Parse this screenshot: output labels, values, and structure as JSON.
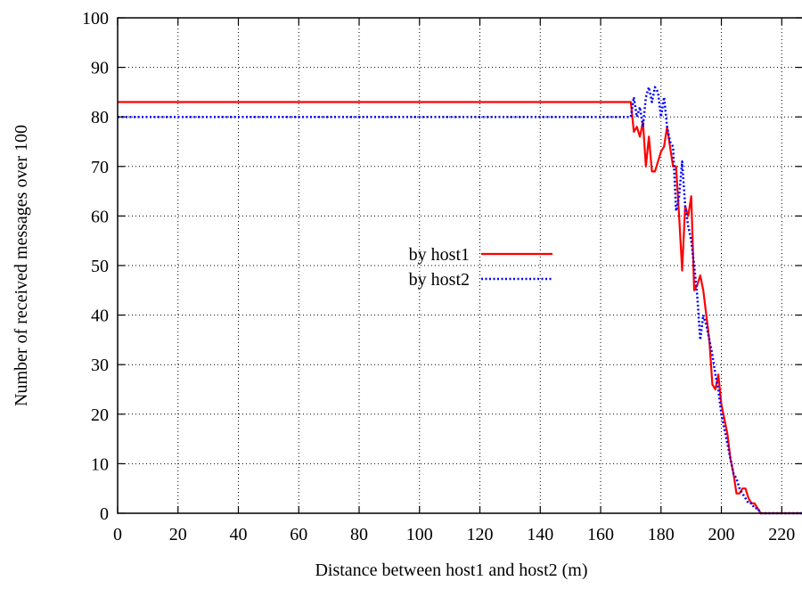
{
  "chart_data": {
    "type": "line",
    "title": "",
    "xlabel": "Distance between host1 and host2 (m)",
    "ylabel": "Number of received messages over 100",
    "xlim": [
      0,
      227
    ],
    "ylim": [
      0,
      100
    ],
    "xticks": [
      0,
      20,
      40,
      60,
      80,
      100,
      120,
      140,
      160,
      180,
      200,
      220
    ],
    "yticks": [
      0,
      10,
      20,
      30,
      40,
      50,
      60,
      70,
      80,
      90,
      100
    ],
    "grid": true,
    "legend_position": "center",
    "series": [
      {
        "name": "by host1",
        "color": "#ff0000",
        "style": "solid",
        "x": [
          0,
          170,
          171,
          172,
          173,
          174,
          175,
          176,
          177,
          178,
          179,
          180,
          181,
          182,
          183,
          184,
          185,
          186,
          187,
          188,
          189,
          190,
          191,
          192,
          193,
          194,
          195,
          196,
          197,
          198,
          199,
          200,
          201,
          202,
          203,
          204,
          205,
          206,
          207,
          208,
          209,
          210,
          211,
          212,
          213,
          214,
          215,
          216,
          220,
          227
        ],
        "y": [
          83,
          83,
          77,
          78,
          76,
          79,
          70,
          76,
          69,
          69,
          71,
          73,
          74,
          78,
          74,
          70,
          70,
          60,
          49,
          62,
          60,
          64,
          45,
          46,
          48,
          45,
          40,
          35,
          26,
          25,
          28,
          22,
          19,
          16,
          11,
          8,
          4,
          4,
          5,
          5,
          3,
          2,
          2,
          1,
          0,
          0,
          0,
          0,
          0,
          0
        ]
      },
      {
        "name": "by host2",
        "color": "#0000ff",
        "style": "dotted",
        "x": [
          0,
          170,
          171,
          172,
          173,
          174,
          175,
          176,
          177,
          178,
          179,
          180,
          181,
          182,
          183,
          184,
          185,
          186,
          187,
          188,
          189,
          190,
          191,
          192,
          193,
          194,
          195,
          196,
          197,
          198,
          199,
          200,
          201,
          202,
          203,
          204,
          205,
          206,
          207,
          208,
          209,
          210,
          211,
          212,
          213,
          214,
          215,
          216,
          220,
          227
        ],
        "y": [
          80,
          80,
          84,
          80,
          82,
          78,
          84,
          86,
          83,
          86,
          85,
          80,
          84,
          78,
          75,
          74,
          61,
          64,
          71,
          62,
          58,
          55,
          50,
          44,
          35,
          40,
          38,
          35,
          32,
          28,
          25,
          20,
          17,
          14,
          11,
          8,
          7,
          5,
          4,
          3,
          2,
          2,
          1,
          1,
          0,
          0,
          0,
          0,
          0,
          0
        ]
      }
    ]
  }
}
